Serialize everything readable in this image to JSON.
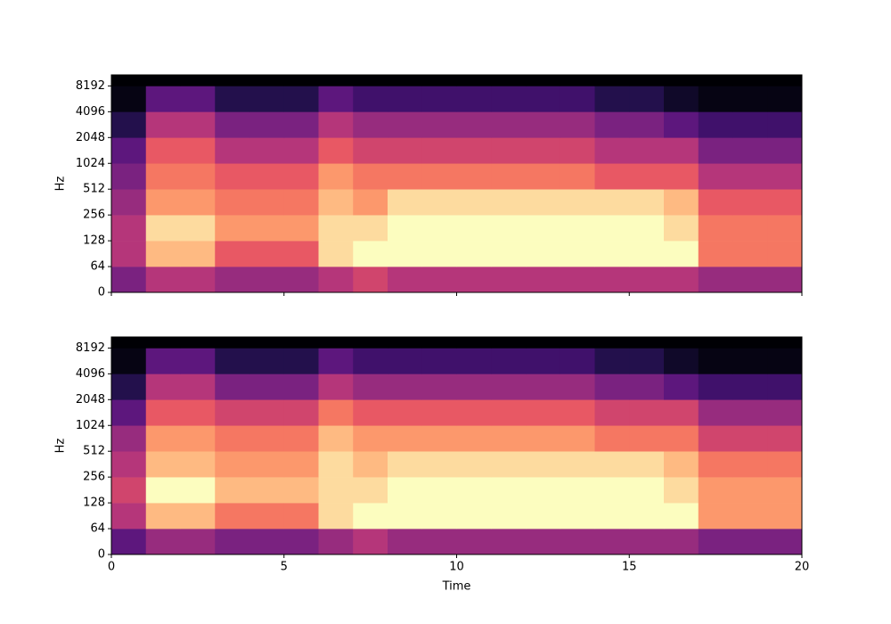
{
  "chart_data": [
    {
      "type": "heatmap",
      "ylabel": "Hz",
      "yscale": "symlog",
      "linthresh": 64,
      "colormap": "magma",
      "xlim": [
        0,
        20
      ],
      "xticks": [
        0,
        5,
        10,
        15,
        20
      ],
      "show_xtick_labels": false,
      "ylim": [
        0,
        11025
      ],
      "yticks": [
        0,
        64,
        128,
        256,
        512,
        1024,
        2048,
        4096,
        8192
      ],
      "time_bins": [
        0,
        1,
        2,
        3,
        4,
        5,
        6,
        7,
        8,
        9,
        10,
        11,
        12,
        13,
        14,
        15,
        16,
        17,
        18,
        19,
        20
      ],
      "freq_bins": [
        0,
        64,
        128,
        256,
        512,
        1024,
        2048,
        4096,
        8192,
        11025
      ],
      "z": [
        [
          -55,
          -45,
          -45,
          -50,
          -50,
          -50,
          -45,
          -40,
          -45,
          -45,
          -45,
          -45,
          -45,
          -45,
          -45,
          -45,
          -45,
          -50,
          -50,
          -50
        ],
        [
          -45,
          -20,
          -20,
          -35,
          -35,
          -35,
          -15,
          -10,
          -10,
          -10,
          -10,
          -10,
          -10,
          -10,
          -10,
          -10,
          -10,
          -30,
          -30,
          -30
        ],
        [
          -45,
          -15,
          -15,
          -25,
          -25,
          -25,
          -15,
          -15,
          -10,
          -10,
          -10,
          -10,
          -10,
          -10,
          -10,
          -10,
          -15,
          -30,
          -30,
          -30
        ],
        [
          -50,
          -25,
          -25,
          -30,
          -30,
          -30,
          -20,
          -25,
          -15,
          -15,
          -15,
          -15,
          -15,
          -15,
          -15,
          -15,
          -20,
          -35,
          -35,
          -35
        ],
        [
          -55,
          -30,
          -30,
          -35,
          -35,
          -35,
          -25,
          -30,
          -30,
          -30,
          -30,
          -30,
          -30,
          -30,
          -35,
          -35,
          -35,
          -45,
          -45,
          -45
        ],
        [
          -60,
          -35,
          -35,
          -45,
          -45,
          -45,
          -35,
          -40,
          -40,
          -40,
          -40,
          -40,
          -40,
          -40,
          -45,
          -45,
          -45,
          -55,
          -55,
          -55
        ],
        [
          -70,
          -45,
          -45,
          -55,
          -55,
          -55,
          -45,
          -50,
          -50,
          -50,
          -50,
          -50,
          -50,
          -50,
          -55,
          -55,
          -60,
          -65,
          -65,
          -65
        ],
        [
          -78,
          -60,
          -60,
          -70,
          -70,
          -70,
          -60,
          -65,
          -65,
          -65,
          -65,
          -65,
          -65,
          -65,
          -70,
          -70,
          -75,
          -78,
          -78,
          -78
        ],
        [
          -80,
          -80,
          -80,
          -80,
          -80,
          -80,
          -80,
          -80,
          -80,
          -80,
          -80,
          -80,
          -80,
          -80,
          -80,
          -80,
          -80,
          -80,
          -80,
          -80
        ]
      ]
    },
    {
      "type": "heatmap",
      "ylabel": "Hz",
      "xlabel": "Time",
      "yscale": "symlog",
      "linthresh": 64,
      "colormap": "magma",
      "xlim": [
        0,
        20
      ],
      "xticks": [
        0,
        5,
        10,
        15,
        20
      ],
      "show_xtick_labels": true,
      "ylim": [
        0,
        11025
      ],
      "yticks": [
        0,
        64,
        128,
        256,
        512,
        1024,
        2048,
        4096,
        8192
      ],
      "time_bins": [
        0,
        1,
        2,
        3,
        4,
        5,
        6,
        7,
        8,
        9,
        10,
        11,
        12,
        13,
        14,
        15,
        16,
        17,
        18,
        19,
        20
      ],
      "freq_bins": [
        0,
        64,
        128,
        256,
        512,
        1024,
        2048,
        4096,
        8192,
        11025
      ],
      "z": [
        [
          -60,
          -50,
          -50,
          -55,
          -55,
          -55,
          -50,
          -45,
          -50,
          -50,
          -50,
          -50,
          -50,
          -50,
          -50,
          -50,
          -50,
          -55,
          -55,
          -55
        ],
        [
          -45,
          -20,
          -20,
          -30,
          -30,
          -30,
          -15,
          -10,
          -10,
          -10,
          -10,
          -10,
          -10,
          -10,
          -10,
          -10,
          -10,
          -25,
          -25,
          -25
        ],
        [
          -40,
          -10,
          -10,
          -20,
          -20,
          -20,
          -15,
          -15,
          -10,
          -10,
          -10,
          -10,
          -10,
          -10,
          -10,
          -10,
          -15,
          -25,
          -25,
          -25
        ],
        [
          -45,
          -20,
          -20,
          -25,
          -25,
          -25,
          -15,
          -20,
          -15,
          -15,
          -15,
          -15,
          -15,
          -15,
          -15,
          -15,
          -20,
          -30,
          -30,
          -30
        ],
        [
          -50,
          -25,
          -25,
          -30,
          -30,
          -30,
          -20,
          -25,
          -25,
          -25,
          -25,
          -25,
          -25,
          -25,
          -30,
          -30,
          -30,
          -40,
          -40,
          -40
        ],
        [
          -60,
          -35,
          -35,
          -40,
          -40,
          -40,
          -30,
          -35,
          -35,
          -35,
          -35,
          -35,
          -35,
          -35,
          -40,
          -40,
          -40,
          -50,
          -50,
          -50
        ],
        [
          -70,
          -45,
          -45,
          -55,
          -55,
          -55,
          -45,
          -50,
          -50,
          -50,
          -50,
          -50,
          -50,
          -50,
          -55,
          -55,
          -60,
          -65,
          -65,
          -65
        ],
        [
          -78,
          -60,
          -60,
          -70,
          -70,
          -70,
          -60,
          -65,
          -65,
          -65,
          -65,
          -65,
          -65,
          -65,
          -70,
          -70,
          -75,
          -78,
          -78,
          -78
        ],
        [
          -80,
          -80,
          -80,
          -80,
          -80,
          -80,
          -80,
          -80,
          -80,
          -80,
          -80,
          -80,
          -80,
          -80,
          -80,
          -80,
          -80,
          -80,
          -80,
          -80
        ]
      ]
    }
  ]
}
